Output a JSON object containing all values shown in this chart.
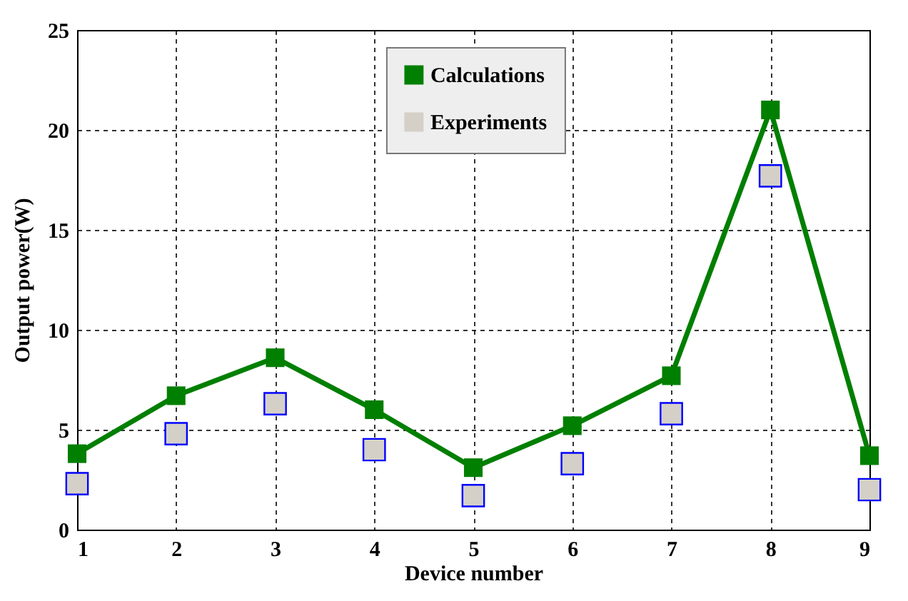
{
  "chart_data": {
    "type": "line",
    "xlabel": "Device number",
    "ylabel": "Output power(W)",
    "x": [
      1,
      2,
      3,
      4,
      5,
      6,
      7,
      8,
      9
    ],
    "series": [
      {
        "name": "Calculations",
        "color": "#007f00",
        "values": [
          3.8,
          6.7,
          8.6,
          6.0,
          3.1,
          5.2,
          7.7,
          21.0,
          3.7
        ]
      },
      {
        "name": "Experiments",
        "type": "scatter",
        "color": "#d4d0c8",
        "values": [
          2.3,
          4.8,
          6.3,
          4.0,
          1.7,
          3.3,
          5.8,
          17.7,
          2.0
        ]
      }
    ],
    "xlim": [
      1,
      9
    ],
    "xticks": [
      1,
      2,
      3,
      4,
      5,
      6,
      7,
      8,
      9
    ],
    "ylim": [
      0,
      25
    ],
    "yticks": [
      0,
      5,
      10,
      15,
      20,
      25
    ],
    "grid": true,
    "legend": "top",
    "marker": "square",
    "line_style": "solid"
  }
}
